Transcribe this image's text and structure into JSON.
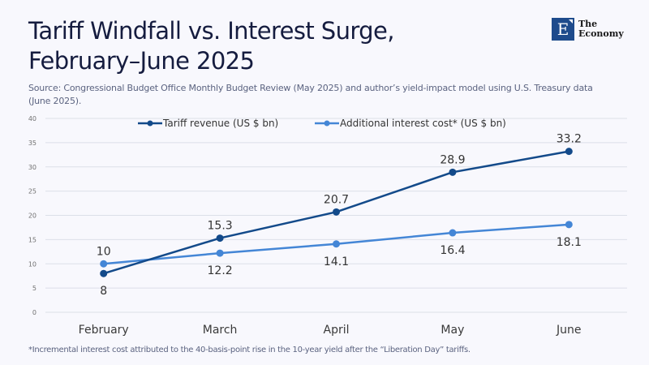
{
  "header": {
    "title_line1": "Tariff Windfall vs. Interest Surge,",
    "title_line2": "February–June 2025",
    "source": "Source:  Congressional Budget Office Monthly Budget Review (May 2025) and author’s yield-impact model using U.S. Treasury data (June 2025)."
  },
  "logo": {
    "mark": "E",
    "line1": "The",
    "line2": "Economy",
    "color": "#1e4b8c"
  },
  "footnote": "*Incremental interest cost attributed to the 40-basis-point rise in the 10-year yield after the “Liberation Day” tariffs.",
  "chart_data": {
    "type": "line",
    "title": "Tariff Windfall vs. Interest Surge, February–June 2025",
    "xlabel": "",
    "ylabel": "",
    "categories": [
      "February",
      "March",
      "April",
      "May",
      "June"
    ],
    "ylim": [
      0,
      40
    ],
    "yticks": [
      0,
      5,
      10,
      15,
      20,
      25,
      30,
      35,
      40
    ],
    "grid": true,
    "legend_position": "top-center",
    "series": [
      {
        "name": "Tariff revenue (US $ bn)",
        "values": [
          8,
          15.3,
          20.7,
          28.9,
          33.2
        ],
        "color": "#134a8a",
        "label_position": [
          "below",
          "above",
          "above",
          "above",
          "above"
        ]
      },
      {
        "name": "Additional interest cost* (US $ bn)",
        "values": [
          10,
          12.2,
          14.1,
          16.4,
          18.1
        ],
        "color": "#4486d6",
        "label_position": [
          "above",
          "below",
          "below",
          "below",
          "below"
        ]
      }
    ]
  }
}
